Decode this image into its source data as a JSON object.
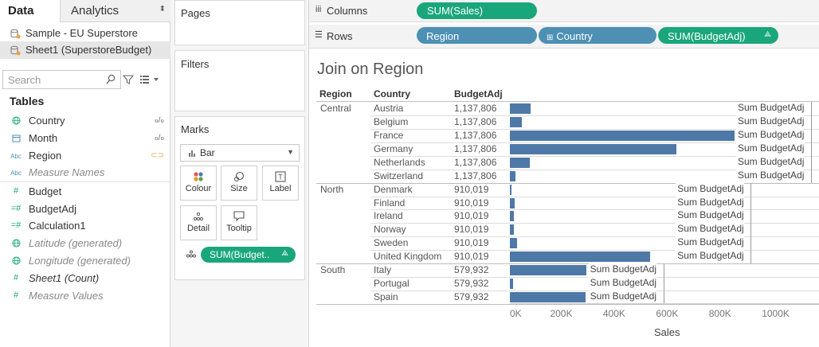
{
  "left_pane": {
    "tabs": {
      "data": "Data",
      "analytics": "Analytics"
    },
    "datasources": [
      {
        "label": "Sample - EU Superstore",
        "selected": false
      },
      {
        "label": "Sheet1 (SuperstoreBudget)",
        "selected": true
      }
    ],
    "search_placeholder": "Search",
    "tables_heading": "Tables",
    "fields": [
      {
        "label": "Country",
        "icon": "globe-icon",
        "kind": "dimension",
        "right": "link-icon"
      },
      {
        "label": "Month",
        "icon": "calendar-icon",
        "kind": "dimension",
        "right": "link-icon"
      },
      {
        "label": "Region",
        "icon": "abc-icon",
        "kind": "dimension",
        "right": "linked-icon"
      },
      {
        "label": "Measure Names",
        "icon": "abc-icon",
        "kind": "dimension",
        "italic": true
      },
      {
        "label": "Budget",
        "icon": "hash-icon",
        "kind": "measure"
      },
      {
        "label": "BudgetAdj",
        "icon": "calc-hash-icon",
        "kind": "measure"
      },
      {
        "label": "Calculation1",
        "icon": "calc-hash-icon",
        "kind": "measure"
      },
      {
        "label": "Latitude (generated)",
        "icon": "globe-icon",
        "kind": "measure",
        "italic": true
      },
      {
        "label": "Longitude (generated)",
        "icon": "globe-icon",
        "kind": "measure",
        "italic": true
      },
      {
        "label": "Sheet1 (Count)",
        "icon": "hash-icon",
        "kind": "measure",
        "italic_dark": true
      },
      {
        "label": "Measure Values",
        "icon": "hash-icon",
        "kind": "measure",
        "italic": true
      }
    ]
  },
  "cards": {
    "pages": "Pages",
    "filters": "Filters",
    "marks": "Marks",
    "mark_type": "Bar",
    "buttons": {
      "colour": "Colour",
      "size": "Size",
      "label": "Label",
      "detail": "Detail",
      "tooltip": "Tooltip"
    },
    "marks_pill": "SUM(Budget..",
    "marks_pill_icon": "delta-icon"
  },
  "shelves": {
    "columns_label": "Columns",
    "columns_pill": "SUM(Sales)",
    "rows_label": "Rows",
    "rows_pills": [
      "Region",
      "Country",
      "SUM(BudgetAdj)"
    ]
  },
  "colors": {
    "bar": "#4e79a7",
    "measure_pill": "#1aa67b",
    "dimension_pill": "#4e90b4"
  },
  "viz": {
    "title": "Join on Region",
    "headers": {
      "region": "Region",
      "country": "Country",
      "budgetadj": "BudgetAdj"
    },
    "ref_label": "Sum BudgetAdj",
    "x_axis_title": "Sales",
    "x_ticks": [
      "0K",
      "200K",
      "400K",
      "600K",
      "800K",
      "1000K"
    ],
    "regions": [
      {
        "name": "Central",
        "budget": "1,137,806",
        "ref_value": 1137806,
        "rows": [
          {
            "country": "Austria",
            "budget": "1,137,806",
            "sales": 78000
          },
          {
            "country": "Belgium",
            "budget": "1,137,806",
            "sales": 45000
          },
          {
            "country": "France",
            "budget": "1,137,806",
            "sales": 850000
          },
          {
            "country": "Germany",
            "budget": "1,137,806",
            "sales": 630000
          },
          {
            "country": "Netherlands",
            "budget": "1,137,806",
            "sales": 75000
          },
          {
            "country": "Switzerland",
            "budget": "1,137,806",
            "sales": 22000
          }
        ]
      },
      {
        "name": "North",
        "budget": "910,019",
        "ref_value": 910019,
        "rows": [
          {
            "country": "Denmark",
            "budget": "910,019",
            "sales": 6000
          },
          {
            "country": "Finland",
            "budget": "910,019",
            "sales": 18000
          },
          {
            "country": "Ireland",
            "budget": "910,019",
            "sales": 15000
          },
          {
            "country": "Norway",
            "budget": "910,019",
            "sales": 15000
          },
          {
            "country": "Sweden",
            "budget": "910,019",
            "sales": 28000
          },
          {
            "country": "United Kingdom",
            "budget": "910,019",
            "sales": 530000
          }
        ]
      },
      {
        "name": "South",
        "budget": "579,932",
        "ref_value": 579932,
        "rows": [
          {
            "country": "Italy",
            "budget": "579,932",
            "sales": 290000
          },
          {
            "country": "Portugal",
            "budget": "579,932",
            "sales": 12000
          },
          {
            "country": "Spain",
            "budget": "579,932",
            "sales": 287000
          }
        ]
      }
    ]
  },
  "chart_data": {
    "type": "bar",
    "title": "Join on Region",
    "xlabel": "Sales",
    "ylabel": "",
    "xlim": [
      0,
      1000000
    ],
    "categories": [
      "Austria",
      "Belgium",
      "France",
      "Germany",
      "Netherlands",
      "Switzerland",
      "Denmark",
      "Finland",
      "Ireland",
      "Norway",
      "Sweden",
      "United Kingdom",
      "Italy",
      "Portugal",
      "Spain"
    ],
    "values": [
      78000,
      45000,
      850000,
      630000,
      75000,
      22000,
      6000,
      18000,
      15000,
      15000,
      28000,
      530000,
      290000,
      12000,
      287000
    ],
    "reference_lines": [
      {
        "group": "Central",
        "label": "Sum BudgetAdj",
        "value": 1137806
      },
      {
        "group": "North",
        "label": "Sum BudgetAdj",
        "value": 910019
      },
      {
        "group": "South",
        "label": "Sum BudgetAdj",
        "value": 579932
      }
    ],
    "grid": false
  }
}
